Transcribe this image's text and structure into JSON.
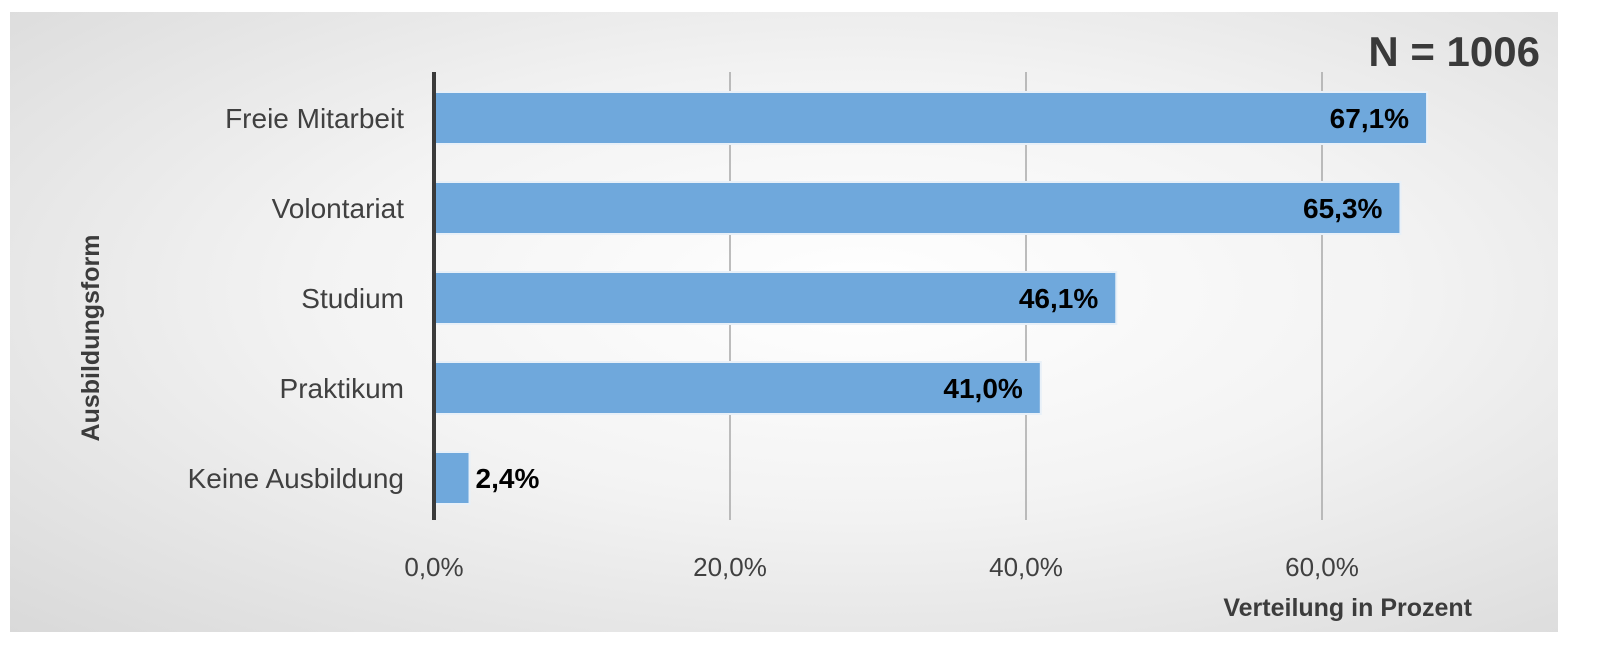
{
  "chart_data": {
    "type": "bar",
    "orientation": "horizontal",
    "sample_size_label": "N = 1006",
    "categories": [
      "Freie Mitarbeit",
      "Volontariat",
      "Studium",
      "Praktikum",
      "Keine Ausbildung"
    ],
    "values": [
      67.1,
      65.3,
      46.1,
      41.0,
      2.4
    ],
    "data_labels": [
      "67,1%",
      "65,3%",
      "46,1%",
      "41,0%",
      "2,4%"
    ],
    "x_ticks": [
      0,
      20,
      40,
      60
    ],
    "x_tick_labels": [
      "0,0%",
      "20,0%",
      "40,0%",
      "60,0%"
    ],
    "xlabel": "Verteilung in Prozent",
    "ylabel": "Ausbildungsform",
    "xlim": [
      0,
      70
    ],
    "grid": "vertical",
    "legend": "none",
    "colors": {
      "bar": "#6fa8dc",
      "bar_edge": "#e8f0f8",
      "axis": "#3a3a3a",
      "grid": "#a8a8a8"
    }
  }
}
